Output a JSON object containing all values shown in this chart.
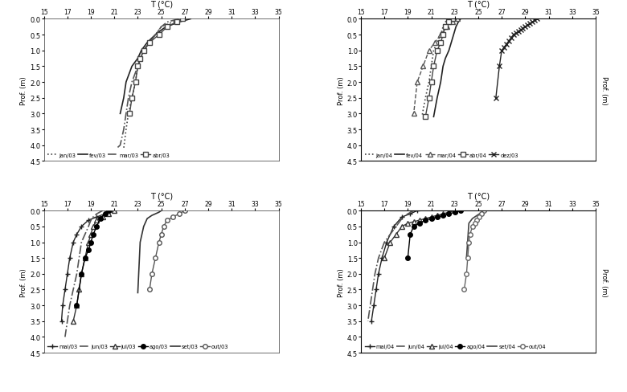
{
  "subplots": [
    {
      "title": "T (°C)",
      "xlabel_ticks": [
        15.0,
        17.0,
        19.0,
        21.0,
        23.0,
        25.0,
        27.0,
        29.0,
        31.0,
        33.0,
        35.0
      ],
      "xlim": [
        15.0,
        35.0
      ],
      "ylim": [
        4.5,
        0.0
      ],
      "ylabel": "Prof. (m)",
      "right_ylabel": false,
      "series": [
        {
          "label": "jan/03",
          "linestyle": "dotted",
          "marker": null,
          "color": "#444444",
          "lw": 1.2,
          "temp": [
            27.0,
            26.0,
            25.0,
            24.5,
            24.0,
            23.5,
            23.0,
            22.8,
            22.5,
            22.2,
            22.0,
            21.8
          ],
          "depth": [
            0.0,
            0.1,
            0.25,
            0.5,
            0.75,
            1.0,
            1.5,
            2.0,
            2.5,
            3.0,
            3.5,
            4.1
          ]
        },
        {
          "label": "fev/03",
          "linestyle": "solid",
          "marker": null,
          "color": "#222222",
          "lw": 1.2,
          "temp": [
            27.5,
            27.0,
            26.5,
            25.8,
            25.2,
            24.5,
            23.8,
            23.3,
            23.0,
            22.5,
            22.0,
            21.8,
            21.5
          ],
          "depth": [
            0.0,
            0.05,
            0.1,
            0.2,
            0.3,
            0.5,
            0.75,
            1.0,
            1.25,
            1.5,
            2.0,
            2.5,
            3.0
          ]
        },
        {
          "label": "mar/03",
          "linestyle": "dashdot",
          "marker": null,
          "color": "#555555",
          "lw": 1.2,
          "temp": [
            26.5,
            26.0,
            25.5,
            25.0,
            24.5,
            24.0,
            23.5,
            23.0,
            22.5,
            22.2,
            22.0,
            21.8,
            21.5,
            21.2
          ],
          "depth": [
            0.0,
            0.05,
            0.1,
            0.25,
            0.5,
            0.75,
            1.0,
            1.5,
            2.0,
            2.5,
            3.0,
            3.5,
            4.0,
            4.1
          ]
        },
        {
          "label": "abr/03",
          "linestyle": "solid",
          "marker": "s",
          "color": "#444444",
          "lw": 1.0,
          "mfc": "white",
          "msize": 4,
          "temp": [
            26.8,
            26.3,
            25.5,
            24.8,
            24.0,
            23.5,
            23.2,
            23.0,
            22.8,
            22.5,
            22.3
          ],
          "depth": [
            0.0,
            0.1,
            0.25,
            0.5,
            0.75,
            1.0,
            1.25,
            1.5,
            2.0,
            2.5,
            3.0
          ]
        }
      ]
    },
    {
      "title": "T (°C)",
      "xlabel_ticks": [
        15.0,
        17.0,
        19.0,
        21.0,
        23.0,
        25.0,
        27.0,
        29.0,
        31.0,
        33.0,
        35.0
      ],
      "xlim": [
        15.0,
        35.0
      ],
      "ylim": [
        4.5,
        0.0
      ],
      "ylabel": "Prof. (m)",
      "right_ylabel": true,
      "series": [
        {
          "label": "jan/04",
          "linestyle": "dotted",
          "marker": null,
          "color": "#444444",
          "lw": 1.2,
          "temp": [
            22.5,
            22.2,
            22.0,
            21.8,
            21.5,
            21.2,
            21.0,
            20.8,
            20.5,
            20.2
          ],
          "depth": [
            0.0,
            0.1,
            0.25,
            0.5,
            0.75,
            1.0,
            1.5,
            2.0,
            2.5,
            3.1
          ]
        },
        {
          "label": "fev/04",
          "linestyle": "solid",
          "marker": null,
          "color": "#222222",
          "lw": 1.2,
          "temp": [
            23.5,
            23.3,
            23.1,
            22.9,
            22.7,
            22.5,
            22.2,
            22.0,
            21.8,
            21.5,
            21.2
          ],
          "depth": [
            0.0,
            0.1,
            0.25,
            0.5,
            0.75,
            1.0,
            1.25,
            1.5,
            2.0,
            2.5,
            3.1
          ]
        },
        {
          "label": "mar/04",
          "linestyle": "dashed",
          "marker": "^",
          "color": "#555555",
          "lw": 1.0,
          "mfc": "white",
          "msize": 4,
          "temp": [
            23.2,
            22.8,
            22.3,
            21.8,
            21.3,
            20.8,
            20.3,
            19.8,
            19.5
          ],
          "depth": [
            0.0,
            0.1,
            0.25,
            0.5,
            0.75,
            1.0,
            1.5,
            2.0,
            3.0
          ]
        },
        {
          "label": "abr/04",
          "linestyle": "solid",
          "marker": "s",
          "color": "#444444",
          "lw": 1.0,
          "mfc": "white",
          "msize": 4,
          "temp": [
            22.8,
            22.5,
            22.2,
            22.0,
            21.8,
            21.5,
            21.2,
            21.0,
            20.8,
            20.5
          ],
          "depth": [
            0.0,
            0.1,
            0.25,
            0.5,
            0.75,
            1.0,
            1.5,
            2.0,
            2.5,
            3.1
          ]
        },
        {
          "label": "dez/03",
          "linestyle": "solid",
          "marker": "x",
          "color": "#222222",
          "lw": 1.0,
          "mfc": "#222222",
          "msize": 5,
          "temp": [
            30.0,
            29.8,
            29.6,
            29.4,
            29.2,
            29.0,
            28.8,
            28.6,
            28.4,
            28.2,
            28.0,
            27.8,
            27.6,
            27.4,
            27.2,
            27.0,
            26.8,
            26.5
          ],
          "depth": [
            0.0,
            0.05,
            0.1,
            0.15,
            0.2,
            0.25,
            0.3,
            0.35,
            0.4,
            0.45,
            0.5,
            0.6,
            0.7,
            0.8,
            0.9,
            1.0,
            1.5,
            2.5
          ]
        }
      ]
    },
    {
      "title": "T (°C)",
      "xlabel_ticks": [
        15.0,
        17.0,
        19.0,
        21.0,
        23.0,
        25.0,
        27.0,
        29.0,
        31.0,
        33.0,
        35.0
      ],
      "xlim": [
        15.0,
        35.0
      ],
      "ylim": [
        4.5,
        0.0
      ],
      "ylabel": "Prof. (m)",
      "right_ylabel": false,
      "series": [
        {
          "label": "mai/03",
          "linestyle": "solid",
          "marker": "+",
          "color": "#222222",
          "lw": 1.0,
          "mfc": "#222222",
          "msize": 5,
          "temp": [
            21.0,
            20.2,
            19.5,
            18.8,
            18.2,
            17.8,
            17.5,
            17.2,
            17.0,
            16.8,
            16.6,
            16.5
          ],
          "depth": [
            0.0,
            0.1,
            0.2,
            0.3,
            0.5,
            0.75,
            1.0,
            1.5,
            2.0,
            2.5,
            3.0,
            3.5
          ]
        },
        {
          "label": "jun/03",
          "linestyle": "dashdot",
          "marker": null,
          "color": "#555555",
          "lw": 1.2,
          "temp": [
            20.0,
            19.5,
            19.2,
            19.0,
            18.8,
            18.5,
            18.2,
            18.0,
            17.8,
            17.5,
            17.2,
            17.0,
            16.8
          ],
          "depth": [
            0.0,
            0.1,
            0.2,
            0.3,
            0.5,
            0.75,
            1.0,
            1.5,
            2.0,
            2.5,
            3.0,
            3.5,
            4.0
          ]
        },
        {
          "label": "jul/03",
          "linestyle": "solid",
          "marker": "^",
          "color": "#333333",
          "lw": 1.0,
          "mfc": "white",
          "msize": 4,
          "temp": [
            21.0,
            20.5,
            20.0,
            19.5,
            19.2,
            19.0,
            18.8,
            18.5,
            18.2,
            18.0,
            17.8,
            17.5
          ],
          "depth": [
            0.0,
            0.1,
            0.2,
            0.3,
            0.5,
            0.75,
            1.0,
            1.5,
            2.0,
            2.5,
            3.0,
            3.5
          ]
        },
        {
          "label": "ago/03",
          "linestyle": "solid",
          "marker": "o",
          "color": "#000000",
          "lw": 1.0,
          "mfc": "#000000",
          "msize": 4,
          "temp": [
            20.5,
            20.2,
            19.8,
            19.5,
            19.2,
            19.0,
            18.8,
            18.5,
            18.2,
            17.8
          ],
          "depth": [
            0.0,
            0.1,
            0.25,
            0.5,
            0.75,
            1.0,
            1.25,
            1.5,
            2.0,
            3.0
          ]
        },
        {
          "label": "set/03",
          "linestyle": "solid",
          "marker": null,
          "color": "#333333",
          "lw": 1.2,
          "temp": [
            25.0,
            24.8,
            24.5,
            24.2,
            24.0,
            23.8,
            23.5,
            23.2,
            23.0
          ],
          "depth": [
            0.0,
            0.05,
            0.1,
            0.15,
            0.2,
            0.25,
            0.5,
            1.0,
            2.6
          ]
        },
        {
          "label": "out/03",
          "linestyle": "solid",
          "marker": "o",
          "color": "#555555",
          "lw": 1.0,
          "mfc": "white",
          "msize": 4,
          "temp": [
            27.0,
            26.5,
            26.0,
            25.5,
            25.2,
            25.0,
            24.8,
            24.5,
            24.2,
            24.0
          ],
          "depth": [
            0.0,
            0.1,
            0.2,
            0.3,
            0.5,
            0.75,
            1.0,
            1.5,
            2.0,
            2.5
          ]
        }
      ]
    },
    {
      "title": "T (°C)",
      "xlabel_ticks": [
        15.0,
        17.0,
        19.0,
        21.0,
        23.0,
        25.0,
        27.0,
        29.0,
        31.0,
        33.0,
        35.0
      ],
      "xlim": [
        15.0,
        35.0
      ],
      "ylim": [
        4.5,
        0.0
      ],
      "ylabel": "Prof. (m)",
      "right_ylabel": true,
      "series": [
        {
          "label": "mai/04",
          "linestyle": "solid",
          "marker": "+",
          "color": "#222222",
          "lw": 1.0,
          "mfc": "#222222",
          "msize": 5,
          "temp": [
            19.8,
            19.2,
            18.5,
            17.8,
            17.2,
            16.8,
            16.5,
            16.3,
            16.1,
            15.9
          ],
          "depth": [
            0.0,
            0.1,
            0.2,
            0.5,
            1.0,
            1.5,
            2.0,
            2.5,
            3.0,
            3.5
          ]
        },
        {
          "label": "jun/04",
          "linestyle": "dashdot",
          "marker": null,
          "color": "#555555",
          "lw": 1.2,
          "temp": [
            19.5,
            19.0,
            18.5,
            18.0,
            17.5,
            17.0,
            16.5,
            16.2,
            16.0,
            15.8,
            15.6
          ],
          "depth": [
            0.0,
            0.1,
            0.25,
            0.5,
            0.75,
            1.0,
            1.5,
            2.0,
            2.5,
            3.0,
            3.5
          ]
        },
        {
          "label": "jul/04",
          "linestyle": "solid",
          "marker": "^",
          "color": "#333333",
          "lw": 1.0,
          "mfc": "white",
          "msize": 4,
          "temp": [
            23.0,
            22.5,
            22.0,
            21.5,
            21.0,
            20.5,
            20.0,
            19.5,
            19.0,
            18.5,
            18.0,
            17.5,
            17.0
          ],
          "depth": [
            0.0,
            0.05,
            0.1,
            0.15,
            0.2,
            0.25,
            0.3,
            0.35,
            0.4,
            0.5,
            0.75,
            1.0,
            1.5
          ]
        },
        {
          "label": "ago/04",
          "linestyle": "solid",
          "marker": "o",
          "color": "#000000",
          "lw": 1.0,
          "mfc": "#000000",
          "msize": 4,
          "temp": [
            23.5,
            23.0,
            22.5,
            22.0,
            21.5,
            21.0,
            20.5,
            20.0,
            19.5,
            19.2,
            19.0
          ],
          "depth": [
            0.0,
            0.05,
            0.1,
            0.15,
            0.2,
            0.25,
            0.3,
            0.4,
            0.5,
            0.75,
            1.5
          ]
        },
        {
          "label": "set/04",
          "linestyle": "solid",
          "marker": null,
          "color": "#444444",
          "lw": 1.2,
          "temp": [
            25.5,
            25.3,
            25.1,
            24.9,
            24.7,
            24.5,
            24.2,
            24.0
          ],
          "depth": [
            0.0,
            0.05,
            0.1,
            0.15,
            0.2,
            0.25,
            0.4,
            1.5
          ]
        },
        {
          "label": "out/04",
          "linestyle": "solid",
          "marker": "o",
          "color": "#666666",
          "lw": 1.0,
          "mfc": "white",
          "msize": 4,
          "temp": [
            25.5,
            25.3,
            25.1,
            24.9,
            24.7,
            24.5,
            24.3,
            24.2,
            24.1,
            24.0,
            23.8
          ],
          "depth": [
            0.0,
            0.1,
            0.2,
            0.3,
            0.4,
            0.5,
            0.75,
            1.0,
            1.5,
            2.0,
            2.5
          ]
        }
      ]
    }
  ]
}
